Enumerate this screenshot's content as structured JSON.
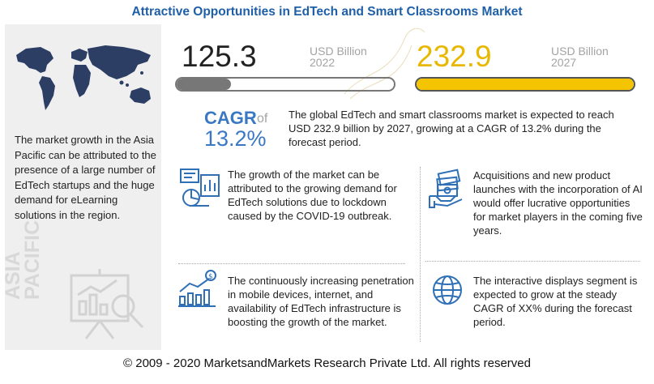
{
  "title": "Attractive Opportunities in EdTech and Smart Classrooms Market",
  "sidebar": {
    "text": "The market growth in the Asia Pacific can be attributed to the presence of a large number of EdTech startups and the huge demand for eLearning solutions in the region.",
    "region_line1": "ASIA",
    "region_line2": "PACIFIC"
  },
  "market_2022": {
    "value": "125.3",
    "unit_line1": "USD Billion",
    "unit_line2": "2022",
    "bar_fill_pct": 25
  },
  "market_2027": {
    "value": "232.9",
    "unit_line1": "USD Billion",
    "unit_line2": "2027",
    "bar_fill_pct": 100
  },
  "cagr": {
    "label": "CAGR",
    "of": "of",
    "value": "13.2%"
  },
  "summary": "The global EdTech and smart classrooms market is expected to reach USD 232.9 billion by 2027, growing at a CAGR of 13.2% during the forecast period.",
  "points": [
    {
      "icon": "analytics-monitor-icon",
      "text": "The growth of the market can be attributed to the growing demand for EdTech solutions due to lockdown caused by the COVID-19 outbreak."
    },
    {
      "icon": "money-hand-icon",
      "text": "Acquisitions and new product launches with the incorporation of AI would offer lucrative opportunities for market players in the coming five years."
    },
    {
      "icon": "growth-chart-icon",
      "text": "The continuously increasing penetration in mobile devices, internet, and availability of EdTech infrastructure is boosting the growth of the market."
    },
    {
      "icon": "globe-icon",
      "text": "The interactive displays segment is expected to grow at the steady CAGR of XX% during the forecast period."
    }
  ],
  "colors": {
    "title": "#1f5fa8",
    "accent_blue": "#3b78c3",
    "accent_yellow": "#f5c400",
    "bar_grey": "#777777"
  },
  "footer": "© 2009 - 2020 MarketsandMarkets Research Private Ltd. All rights reserved"
}
